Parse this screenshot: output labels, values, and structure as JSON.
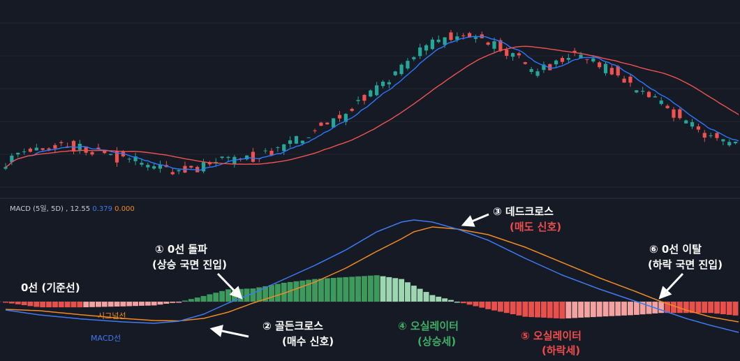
{
  "colors": {
    "background": "#161a25",
    "up": "#26a69a",
    "down": "#ef5350",
    "ma_short": "#2979ff",
    "ma_long": "#ef5350",
    "macd": "#3d7bf2",
    "signal": "#f08a24",
    "hist_pos_strong": "#3e9a5c",
    "hist_pos_weak": "#9fd6b2",
    "hist_neg_strong": "#e8504c",
    "hist_neg_weak": "#f2a3a1",
    "annotation_red": "#ef4c4c",
    "annotation_green": "#3fae64"
  },
  "macd_header": {
    "label": "MACD (5일, 5D)",
    "macd_value": "12.55",
    "signal_value": "0.379",
    "hist_value": "0.000"
  },
  "annotations": {
    "zero_line": "0선 (기준선)",
    "a1_line1": "① 0선 돌파",
    "a1_line2": "(상승 국면 진입)",
    "a2_line1": "② 골든크로스",
    "a2_line2": "(매수 신호)",
    "a3_line1": "③ 데드크로스",
    "a3_line2": "(매도 신호)",
    "a4_line1": "④ 오실레이터",
    "a4_line2": "(상승세)",
    "a5_line1": "⑤ 오실레이터",
    "a5_line2": "(하락세)",
    "a6_line1": "⑥ 0선 이탈",
    "a6_line2": "(하락 국면 진입)",
    "signal_line_label": "시그널선",
    "macd_line_label": "MACD선"
  },
  "chart_data": [
    {
      "type": "candlestick",
      "title": "",
      "x_index": "bar number, left to right",
      "trend": [
        [
          0,
          44.0
        ],
        [
          6,
          47.0
        ],
        [
          12,
          48.5
        ],
        [
          19,
          49.0
        ],
        [
          24,
          48.0
        ],
        [
          32,
          46.0
        ],
        [
          40,
          44.5
        ],
        [
          48,
          42.5
        ],
        [
          57,
          41.5
        ],
        [
          64,
          42.5
        ],
        [
          72,
          44.5
        ],
        [
          80,
          45.5
        ],
        [
          87,
          47.5
        ],
        [
          96,
          51.0
        ],
        [
          104,
          55.5
        ],
        [
          111,
          59.0
        ],
        [
          117,
          63.5
        ],
        [
          124,
          68.5
        ],
        [
          130,
          74.5
        ],
        [
          136,
          78.5
        ],
        [
          142,
          80.5
        ],
        [
          146,
          82.0
        ],
        [
          152,
          81.0
        ],
        [
          160,
          78.5
        ],
        [
          166,
          74.5
        ],
        [
          170,
          71.5
        ],
        [
          175,
          72.5
        ],
        [
          180,
          74.5
        ],
        [
          184,
          76.0
        ],
        [
          190,
          73.5
        ],
        [
          196,
          71.5
        ],
        [
          202,
          67.0
        ],
        [
          210,
          62.5
        ],
        [
          217,
          58.0
        ],
        [
          224,
          53.5
        ],
        [
          232,
          50.5
        ],
        [
          237,
          48.0
        ]
      ],
      "moving_averages": [
        {
          "name": "",
          "color": "#2979ff",
          "period": 5
        },
        {
          "name": "",
          "color": "#ef5350",
          "period": 20
        }
      ]
    },
    {
      "type": "bar",
      "title": "MACD (5일, 5D)",
      "zero_line_label": "0선 (기준선)",
      "key_points": [
        {
          "x": 0,
          "macd": -6.0,
          "signal": -5.5
        },
        {
          "x": 11,
          "macd": -9.5,
          "signal": -6.5
        },
        {
          "x": 25,
          "macd": -12.5,
          "signal": -9.5
        },
        {
          "x": 38,
          "macd": -14.5,
          "signal": -12.0
        },
        {
          "x": 48,
          "macd": -15.5,
          "signal": -13.5
        },
        {
          "x": 56,
          "macd": -14.0,
          "signal": -13.8
        },
        {
          "x": 64,
          "macd": -9.0,
          "signal": -12.0
        },
        {
          "x": 72,
          "macd": -1.0,
          "signal": -7.5
        },
        {
          "x": 80,
          "macd": 6.0,
          "signal": -1.0
        },
        {
          "x": 90,
          "macd": 16.0,
          "signal": 6.0
        },
        {
          "x": 100,
          "macd": 26.0,
          "signal": 14.0
        },
        {
          "x": 110,
          "macd": 37.0,
          "signal": 24.0
        },
        {
          "x": 120,
          "macd": 50.0,
          "signal": 36.0
        },
        {
          "x": 128,
          "macd": 57.0,
          "signal": 45.0
        },
        {
          "x": 132,
          "macd": 58.5,
          "signal": 50.0
        },
        {
          "x": 138,
          "macd": 57.0,
          "signal": 53.5
        },
        {
          "x": 146,
          "macd": 52.0,
          "signal": 52.0
        },
        {
          "x": 156,
          "macd": 44.0,
          "signal": 48.0
        },
        {
          "x": 168,
          "macd": 31.0,
          "signal": 39.0
        },
        {
          "x": 180,
          "macd": 19.0,
          "signal": 28.0
        },
        {
          "x": 192,
          "macd": 9.0,
          "signal": 17.0
        },
        {
          "x": 204,
          "macd": 0.0,
          "signal": 7.0
        },
        {
          "x": 212,
          "macd": -6.0,
          "signal": 0.0
        },
        {
          "x": 220,
          "macd": -12.0,
          "signal": -6.0
        },
        {
          "x": 228,
          "macd": -17.0,
          "signal": -11.0
        },
        {
          "x": 237,
          "macd": -22.0,
          "signal": -14.5
        }
      ],
      "histogram": "macd minus signal, plotted as bars around the zero line"
    }
  ]
}
